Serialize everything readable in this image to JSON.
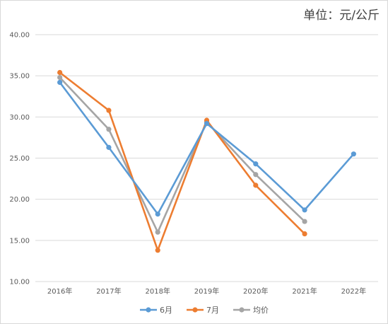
{
  "unit_label": "单位：元/公斤",
  "chart_data": {
    "type": "line",
    "categories": [
      "2016年",
      "2017年",
      "2018年",
      "2019年",
      "2020年",
      "2021年",
      "2022年"
    ],
    "series": [
      {
        "name": "6月",
        "color": "#5b9bd5",
        "values": [
          34.2,
          26.3,
          18.2,
          29.2,
          24.3,
          18.7,
          25.5
        ]
      },
      {
        "name": "7月",
        "color": "#ed7d31",
        "values": [
          35.4,
          30.8,
          13.8,
          29.6,
          21.7,
          15.8,
          null
        ]
      },
      {
        "name": "均价",
        "color": "#a5a5a5",
        "values": [
          34.8,
          28.5,
          16.0,
          29.4,
          23.0,
          17.3,
          null
        ]
      }
    ],
    "yticks": [
      "10.00",
      "15.00",
      "20.00",
      "25.00",
      "30.00",
      "35.00",
      "40.00"
    ],
    "ylim": [
      10,
      40
    ],
    "grid": true,
    "legend_position": "bottom"
  }
}
